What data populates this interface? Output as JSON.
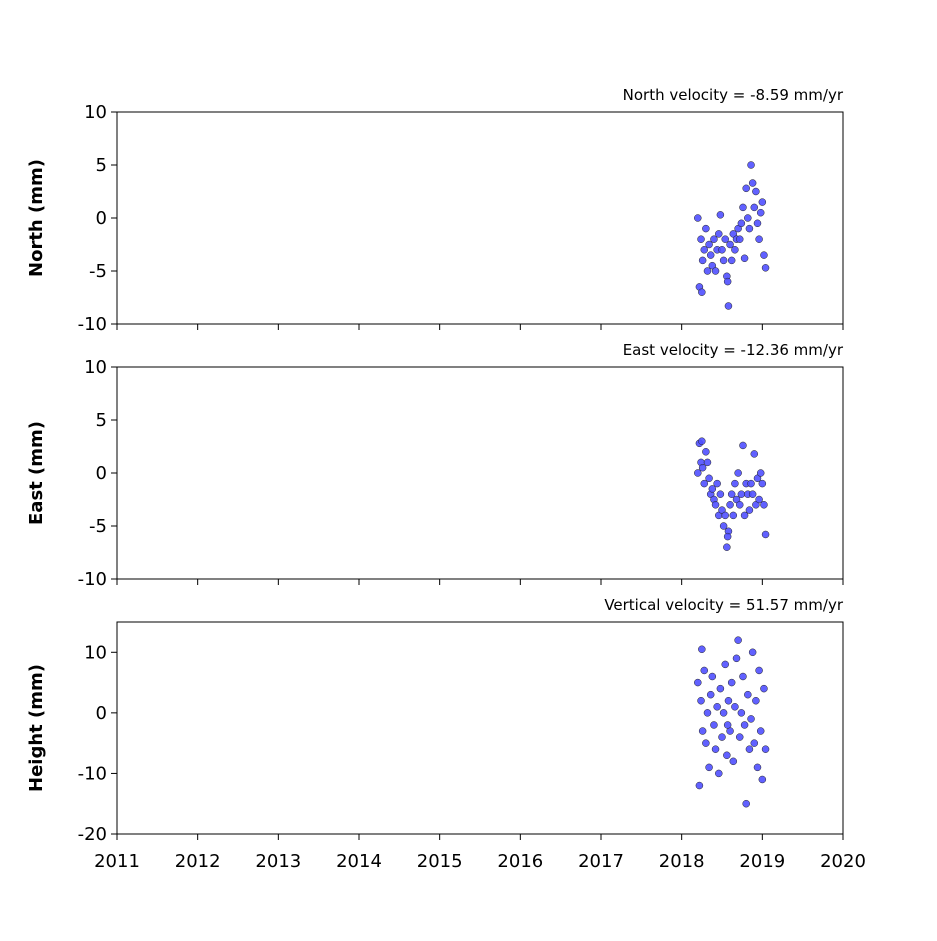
{
  "chart_data": [
    {
      "type": "scatter",
      "title": "North velocity = -8.59 mm/yr",
      "y_label": "North (mm)",
      "color": "#5050ff",
      "ylim": [
        -10,
        10
      ],
      "yticks": [
        -10,
        -5,
        0,
        5,
        10
      ],
      "xlim": [
        2011,
        2020
      ],
      "xticks": [
        2011,
        2012,
        2013,
        2014,
        2015,
        2016,
        2017,
        2018,
        2019,
        2020
      ],
      "x": [
        2018.2,
        2018.22,
        2018.24,
        2018.26,
        2018.28,
        2018.3,
        2018.32,
        2018.34,
        2018.36,
        2018.38,
        2018.4,
        2018.42,
        2018.44,
        2018.46,
        2018.48,
        2018.5,
        2018.52,
        2018.54,
        2018.56,
        2018.58,
        2018.6,
        2018.62,
        2018.64,
        2018.66,
        2018.68,
        2018.7,
        2018.72,
        2018.74,
        2018.76,
        2018.78,
        2018.8,
        2018.82,
        2018.84,
        2018.86,
        2018.88,
        2018.9,
        2018.92,
        2018.94,
        2018.96,
        2018.98,
        2019.0,
        2019.02,
        2019.04,
        2018.25,
        2018.57
      ],
      "values": [
        0,
        -6.5,
        -2,
        -4,
        -3,
        -1,
        -5,
        -2.5,
        -3.5,
        -4.5,
        -2,
        -5,
        -3,
        -1.5,
        0.3,
        -3,
        -4,
        -2,
        -5.5,
        -8.3,
        -2.5,
        -4,
        -1.5,
        -3,
        -2,
        -1,
        -2,
        -0.5,
        1,
        -3.8,
        2.8,
        0,
        -1,
        5,
        3.3,
        1,
        2.5,
        -0.5,
        -2,
        0.5,
        1.5,
        -3.5,
        -4.7,
        -7,
        -6
      ]
    },
    {
      "type": "scatter",
      "title": "East velocity = -12.36 mm/yr",
      "y_label": "East (mm)",
      "color": "#5050ff",
      "ylim": [
        -10,
        10
      ],
      "yticks": [
        -10,
        -5,
        0,
        5,
        10
      ],
      "xlim": [
        2011,
        2020
      ],
      "xticks": [
        2011,
        2012,
        2013,
        2014,
        2015,
        2016,
        2017,
        2018,
        2019,
        2020
      ],
      "x": [
        2018.2,
        2018.22,
        2018.24,
        2018.26,
        2018.28,
        2018.3,
        2018.32,
        2018.34,
        2018.36,
        2018.38,
        2018.4,
        2018.42,
        2018.44,
        2018.46,
        2018.48,
        2018.5,
        2018.52,
        2018.54,
        2018.56,
        2018.58,
        2018.6,
        2018.62,
        2018.64,
        2018.66,
        2018.68,
        2018.7,
        2018.72,
        2018.74,
        2018.76,
        2018.78,
        2018.8,
        2018.82,
        2018.84,
        2018.86,
        2018.88,
        2018.9,
        2018.92,
        2018.94,
        2018.96,
        2018.98,
        2019.0,
        2019.02,
        2019.04,
        2018.25,
        2018.57
      ],
      "values": [
        0,
        2.8,
        1,
        0.5,
        -1,
        2,
        1,
        -0.5,
        -2,
        -1.5,
        -2.5,
        -3,
        -1,
        -4,
        -2,
        -3.5,
        -5,
        -4,
        -7,
        -5.5,
        -3,
        -2,
        -4,
        -1,
        -2.5,
        0,
        -3,
        -2,
        2.6,
        -4,
        -1,
        -2,
        -3.5,
        -1,
        -2,
        1.8,
        -3,
        -0.5,
        -2.5,
        0,
        -1,
        -3,
        -5.8,
        3,
        -6
      ]
    },
    {
      "type": "scatter",
      "title": "Vertical velocity = 51.57 mm/yr",
      "y_label": "Height (mm)",
      "color": "#5050ff",
      "ylim": [
        -20,
        15
      ],
      "yticks": [
        -20,
        -10,
        0,
        10
      ],
      "xlim": [
        2011,
        2020
      ],
      "xticks": [
        2011,
        2012,
        2013,
        2014,
        2015,
        2016,
        2017,
        2018,
        2019,
        2020
      ],
      "x": [
        2018.2,
        2018.22,
        2018.24,
        2018.26,
        2018.28,
        2018.3,
        2018.32,
        2018.34,
        2018.36,
        2018.38,
        2018.4,
        2018.42,
        2018.44,
        2018.46,
        2018.48,
        2018.5,
        2018.52,
        2018.54,
        2018.56,
        2018.58,
        2018.6,
        2018.62,
        2018.64,
        2018.66,
        2018.68,
        2018.7,
        2018.72,
        2018.74,
        2018.76,
        2018.78,
        2018.8,
        2018.82,
        2018.84,
        2018.86,
        2018.88,
        2018.9,
        2018.92,
        2018.94,
        2018.96,
        2018.98,
        2019.0,
        2019.02,
        2019.04,
        2018.25,
        2018.57
      ],
      "values": [
        5,
        -12,
        2,
        -3,
        7,
        -5,
        0,
        -9,
        3,
        6,
        -2,
        -6,
        1,
        -10,
        4,
        -4,
        0,
        8,
        -7,
        2,
        -3,
        5,
        -8,
        1,
        9,
        12,
        -4,
        0,
        6,
        -2,
        -15,
        3,
        -6,
        -1,
        10,
        -5,
        2,
        -9,
        7,
        -3,
        -11,
        4,
        -6,
        10.5,
        -2
      ]
    }
  ]
}
